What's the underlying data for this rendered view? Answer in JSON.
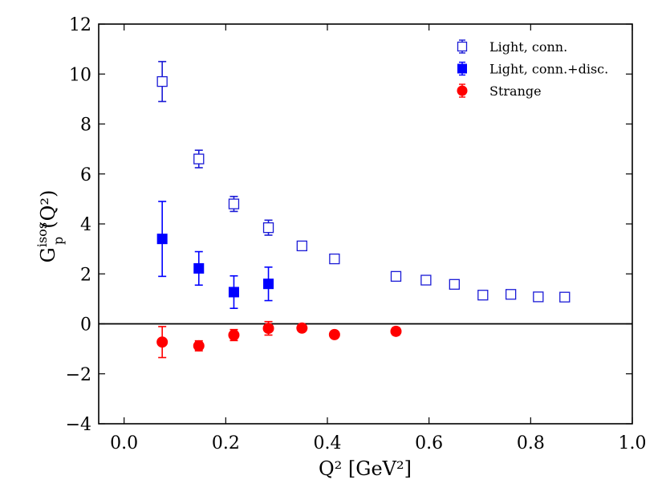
{
  "chart_data": {
    "type": "scatter",
    "xlabel": "Q² [GeV²]",
    "ylabel_main": "G",
    "ylabel_sup": "isos",
    "ylabel_sub": "p",
    "ylabel_tail": "(Q²)",
    "xlim": [
      -0.05,
      1.0
    ],
    "ylim": [
      -4,
      12
    ],
    "xticks": [
      0.0,
      0.2,
      0.4,
      0.6,
      0.8,
      1.0
    ],
    "xtick_labels": [
      "0.0",
      "0.2",
      "0.4",
      "0.6",
      "0.8",
      "1.0"
    ],
    "yticks": [
      -4,
      -2,
      0,
      2,
      4,
      6,
      8,
      10,
      12
    ],
    "ytick_labels": [
      "−4",
      "−2",
      "0",
      "2",
      "4",
      "6",
      "8",
      "10",
      "12"
    ],
    "hline": 0,
    "legend_position": "top-right",
    "series": [
      {
        "name": "Light, conn.",
        "marker": "square-open",
        "color": "#1a1ad6",
        "points": [
          {
            "x": 0.075,
            "y": 9.7,
            "err": 0.8
          },
          {
            "x": 0.147,
            "y": 6.6,
            "err": 0.35
          },
          {
            "x": 0.216,
            "y": 4.8,
            "err": 0.3
          },
          {
            "x": 0.284,
            "y": 3.85,
            "err": 0.3
          },
          {
            "x": 0.35,
            "y": 3.12,
            "err": 0
          },
          {
            "x": 0.414,
            "y": 2.6,
            "err": 0
          },
          {
            "x": 0.535,
            "y": 1.9,
            "err": 0
          },
          {
            "x": 0.594,
            "y": 1.75,
            "err": 0
          },
          {
            "x": 0.65,
            "y": 1.58,
            "err": 0
          },
          {
            "x": 0.706,
            "y": 1.15,
            "err": 0
          },
          {
            "x": 0.761,
            "y": 1.18,
            "err": 0
          },
          {
            "x": 0.815,
            "y": 1.08,
            "err": 0
          },
          {
            "x": 0.867,
            "y": 1.07,
            "err": 0
          }
        ]
      },
      {
        "name": "Light, conn.+disc.",
        "marker": "square-filled",
        "color": "#0000ff",
        "points": [
          {
            "x": 0.075,
            "y": 3.4,
            "err": 1.5
          },
          {
            "x": 0.147,
            "y": 2.22,
            "err": 0.67
          },
          {
            "x": 0.216,
            "y": 1.27,
            "err": 0.65
          },
          {
            "x": 0.284,
            "y": 1.6,
            "err": 0.67
          }
        ]
      },
      {
        "name": "Strange",
        "marker": "circle-filled",
        "color": "#ff0000",
        "points": [
          {
            "x": 0.075,
            "y": -0.73,
            "err": 0.62
          },
          {
            "x": 0.147,
            "y": -0.88,
            "err": 0.2
          },
          {
            "x": 0.216,
            "y": -0.45,
            "err": 0.22
          },
          {
            "x": 0.284,
            "y": -0.18,
            "err": 0.27
          },
          {
            "x": 0.35,
            "y": -0.17,
            "err": 0
          },
          {
            "x": 0.414,
            "y": -0.43,
            "err": 0
          },
          {
            "x": 0.535,
            "y": -0.3,
            "err": 0.15
          }
        ]
      }
    ]
  }
}
